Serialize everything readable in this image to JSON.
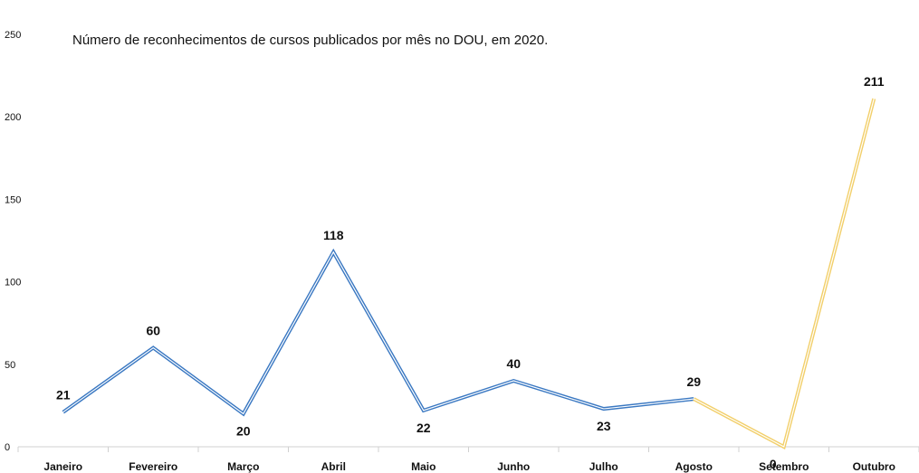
{
  "chart_data": {
    "type": "line",
    "title": "Número de reconhecimentos de cursos publicados por mês no DOU, em 2020.",
    "xlabel": "",
    "ylabel": "",
    "categories": [
      "Janeiro",
      "Fevereiro",
      "Março",
      "Abril",
      "Maio",
      "Junho",
      "Julho",
      "Agosto",
      "Setembro",
      "Outubro"
    ],
    "values": [
      21,
      60,
      20,
      118,
      22,
      40,
      23,
      29,
      0,
      211
    ],
    "data_labels": [
      "21",
      "60",
      "20",
      "118",
      "22",
      "40",
      "23",
      "29",
      "0",
      "211"
    ],
    "yticks": [
      "0",
      "50",
      "100",
      "150",
      "200",
      "250"
    ],
    "ylim": [
      0,
      250
    ],
    "grid": false,
    "segments": [
      {
        "from_index": 0,
        "to_index": 7,
        "color": "#3a78c2"
      },
      {
        "from_index": 7,
        "to_index": 9,
        "color": "#f2cf6a"
      }
    ]
  }
}
